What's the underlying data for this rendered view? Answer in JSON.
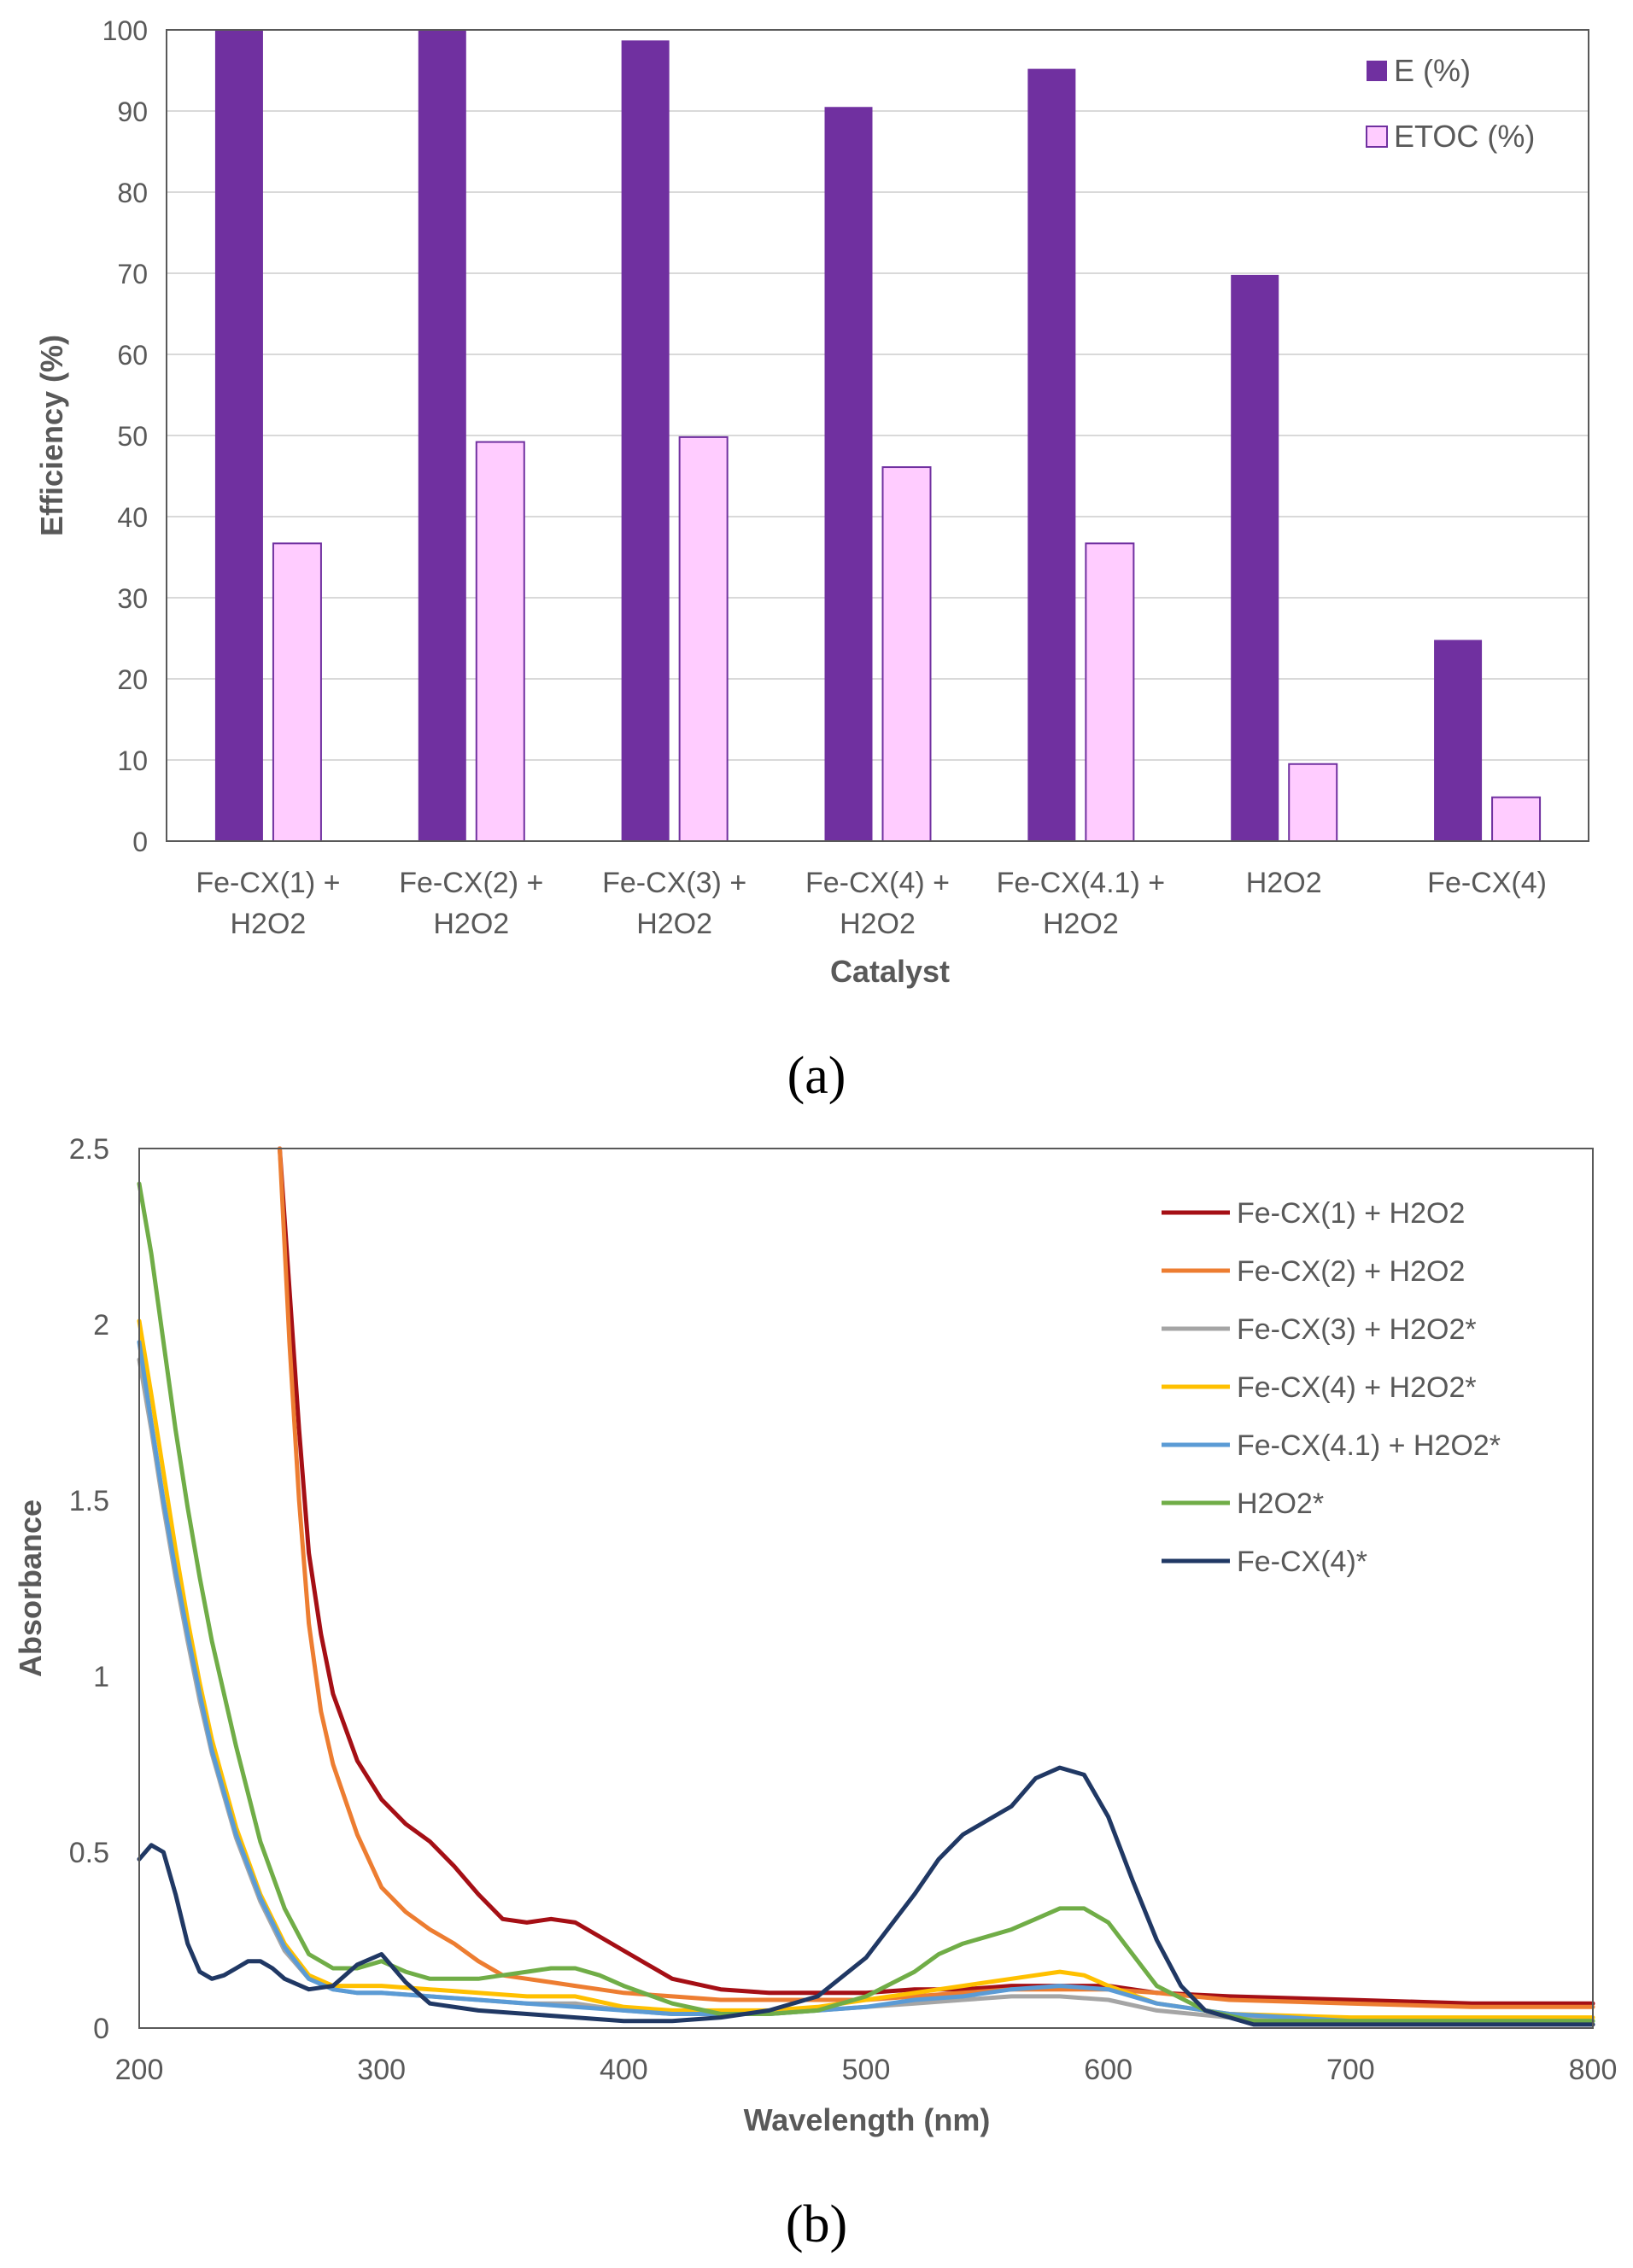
{
  "chart_data": [
    {
      "type": "bar",
      "panel_label": "(a)",
      "xlabel": "Catalyst",
      "ylabel": "Efficiency (%)",
      "ylim": [
        0,
        100
      ],
      "yticks": [
        "0",
        "10",
        "20",
        "30",
        "40",
        "50",
        "60",
        "70",
        "80",
        "90",
        "100"
      ],
      "categories": [
        [
          "Fe-CX(1) +",
          "H2O2"
        ],
        [
          "Fe-CX(2) +",
          "H2O2"
        ],
        [
          "Fe-CX(3) +",
          "H2O2"
        ],
        [
          "Fe-CX(4) +",
          "H2O2"
        ],
        [
          "Fe-CX(4.1) +",
          "H2O2"
        ],
        [
          "H2O2"
        ],
        [
          "Fe-CX(4)"
        ]
      ],
      "series": [
        {
          "name": "E (%)",
          "color": "#7030a0",
          "values": [
            100,
            100,
            98.7,
            90.5,
            95.2,
            69.8,
            24.8
          ]
        },
        {
          "name": "ETOC (%)",
          "color": "#ffccff",
          "stroke": "#7030a0",
          "values": [
            36.7,
            49.2,
            49.8,
            46.1,
            36.7,
            9.5,
            5.4
          ]
        }
      ],
      "legend_position": "top-right",
      "grid": true
    },
    {
      "type": "line",
      "panel_label": "(b)",
      "xlabel": "Wavelength (nm)",
      "ylabel": "Absorbance",
      "xlim": [
        200,
        800
      ],
      "ylim": [
        0,
        2.5
      ],
      "xticks": [
        "200",
        "300",
        "400",
        "500",
        "600",
        "700",
        "800"
      ],
      "yticks": [
        "0",
        "0.5",
        "1",
        "1.5",
        "2",
        "2.5"
      ],
      "legend_position": "top-right",
      "grid": false,
      "series": [
        {
          "name": "Fe-CX(1) + H2O2",
          "color": "#a50f15",
          "x": [
            258,
            262,
            266,
            270,
            275,
            280,
            290,
            300,
            310,
            320,
            330,
            340,
            350,
            360,
            370,
            380,
            390,
            400,
            420,
            440,
            460,
            480,
            500,
            520,
            540,
            560,
            580,
            600,
            620,
            650,
            700,
            750,
            800
          ],
          "y": [
            2.5,
            2.1,
            1.7,
            1.35,
            1.12,
            0.95,
            0.76,
            0.65,
            0.58,
            0.53,
            0.46,
            0.38,
            0.31,
            0.3,
            0.31,
            0.3,
            0.26,
            0.22,
            0.14,
            0.11,
            0.1,
            0.1,
            0.1,
            0.11,
            0.11,
            0.12,
            0.12,
            0.12,
            0.1,
            0.09,
            0.08,
            0.07,
            0.07
          ]
        },
        {
          "name": "Fe-CX(2) + H2O2",
          "color": "#ed7d31",
          "x": [
            258,
            262,
            266,
            270,
            275,
            280,
            290,
            300,
            310,
            320,
            330,
            340,
            350,
            360,
            370,
            380,
            390,
            400,
            420,
            440,
            460,
            480,
            500,
            520,
            540,
            560,
            580,
            600,
            620,
            650,
            700,
            750,
            800
          ],
          "y": [
            2.5,
            1.95,
            1.5,
            1.15,
            0.9,
            0.75,
            0.55,
            0.4,
            0.33,
            0.28,
            0.24,
            0.19,
            0.15,
            0.14,
            0.13,
            0.12,
            0.11,
            0.1,
            0.09,
            0.08,
            0.08,
            0.08,
            0.08,
            0.09,
            0.1,
            0.11,
            0.11,
            0.11,
            0.1,
            0.08,
            0.07,
            0.06,
            0.06
          ]
        },
        {
          "name": "Fe-CX(3) + H2O2*",
          "color": "#a5a5a5",
          "x": [
            200,
            205,
            210,
            215,
            220,
            225,
            230,
            240,
            250,
            260,
            270,
            280,
            290,
            300,
            320,
            340,
            360,
            380,
            400,
            420,
            440,
            460,
            480,
            500,
            520,
            540,
            560,
            580,
            600,
            620,
            650,
            700,
            750,
            800
          ],
          "y": [
            1.9,
            1.7,
            1.48,
            1.28,
            1.1,
            0.93,
            0.78,
            0.54,
            0.36,
            0.22,
            0.14,
            0.11,
            0.1,
            0.1,
            0.09,
            0.08,
            0.07,
            0.07,
            0.05,
            0.04,
            0.04,
            0.04,
            0.05,
            0.06,
            0.07,
            0.08,
            0.09,
            0.09,
            0.08,
            0.05,
            0.03,
            0.02,
            0.02,
            0.02
          ]
        },
        {
          "name": "Fe-CX(4) + H2O2*",
          "color": "#ffc000",
          "x": [
            200,
            205,
            210,
            215,
            220,
            225,
            230,
            240,
            250,
            260,
            270,
            280,
            290,
            300,
            320,
            340,
            360,
            380,
            400,
            420,
            440,
            460,
            480,
            500,
            520,
            540,
            560,
            570,
            580,
            590,
            600,
            620,
            650,
            700,
            750,
            800
          ],
          "y": [
            2.01,
            1.8,
            1.58,
            1.36,
            1.16,
            0.98,
            0.82,
            0.57,
            0.38,
            0.24,
            0.15,
            0.12,
            0.12,
            0.12,
            0.11,
            0.1,
            0.09,
            0.09,
            0.06,
            0.05,
            0.05,
            0.05,
            0.06,
            0.08,
            0.1,
            0.12,
            0.14,
            0.15,
            0.16,
            0.15,
            0.12,
            0.07,
            0.04,
            0.03,
            0.03,
            0.03
          ]
        },
        {
          "name": "Fe-CX(4.1) + H2O2*",
          "color": "#5b9bd5",
          "x": [
            200,
            205,
            210,
            215,
            220,
            225,
            230,
            240,
            250,
            260,
            270,
            280,
            290,
            300,
            320,
            340,
            360,
            380,
            400,
            420,
            440,
            460,
            480,
            500,
            520,
            540,
            560,
            580,
            600,
            620,
            650,
            700,
            750,
            800
          ],
          "y": [
            1.95,
            1.72,
            1.5,
            1.3,
            1.12,
            0.95,
            0.79,
            0.55,
            0.37,
            0.23,
            0.14,
            0.11,
            0.1,
            0.1,
            0.09,
            0.08,
            0.07,
            0.06,
            0.05,
            0.04,
            0.04,
            0.04,
            0.05,
            0.06,
            0.08,
            0.09,
            0.11,
            0.12,
            0.11,
            0.07,
            0.04,
            0.02,
            0.02,
            0.02
          ]
        },
        {
          "name": "H2O2*",
          "color": "#70ad47",
          "x": [
            200,
            205,
            210,
            215,
            220,
            225,
            230,
            240,
            250,
            260,
            270,
            280,
            290,
            300,
            310,
            320,
            330,
            340,
            350,
            360,
            370,
            380,
            390,
            400,
            420,
            440,
            460,
            480,
            500,
            520,
            530,
            540,
            560,
            570,
            580,
            590,
            600,
            610,
            620,
            640,
            660,
            700,
            750,
            800
          ],
          "y": [
            2.4,
            2.2,
            1.95,
            1.7,
            1.48,
            1.28,
            1.1,
            0.8,
            0.53,
            0.34,
            0.21,
            0.17,
            0.17,
            0.19,
            0.16,
            0.14,
            0.14,
            0.14,
            0.15,
            0.16,
            0.17,
            0.17,
            0.15,
            0.12,
            0.07,
            0.04,
            0.04,
            0.05,
            0.09,
            0.16,
            0.21,
            0.24,
            0.28,
            0.31,
            0.34,
            0.34,
            0.3,
            0.21,
            0.12,
            0.05,
            0.02,
            0.02,
            0.02,
            0.02
          ]
        },
        {
          "name": "Fe-CX(4)*",
          "color": "#203864",
          "x": [
            200,
            205,
            210,
            215,
            220,
            225,
            230,
            235,
            240,
            245,
            250,
            255,
            260,
            270,
            280,
            290,
            300,
            310,
            320,
            340,
            360,
            380,
            400,
            420,
            440,
            460,
            480,
            500,
            520,
            530,
            540,
            550,
            560,
            570,
            580,
            590,
            600,
            610,
            620,
            630,
            640,
            660,
            680,
            700,
            750,
            800
          ],
          "y": [
            0.48,
            0.52,
            0.5,
            0.38,
            0.24,
            0.16,
            0.14,
            0.15,
            0.17,
            0.19,
            0.19,
            0.17,
            0.14,
            0.11,
            0.12,
            0.18,
            0.21,
            0.13,
            0.07,
            0.05,
            0.04,
            0.03,
            0.02,
            0.02,
            0.03,
            0.05,
            0.09,
            0.2,
            0.38,
            0.48,
            0.55,
            0.59,
            0.63,
            0.71,
            0.74,
            0.72,
            0.6,
            0.42,
            0.25,
            0.12,
            0.05,
            0.01,
            0.01,
            0.01,
            0.01,
            0.01
          ]
        }
      ]
    }
  ]
}
